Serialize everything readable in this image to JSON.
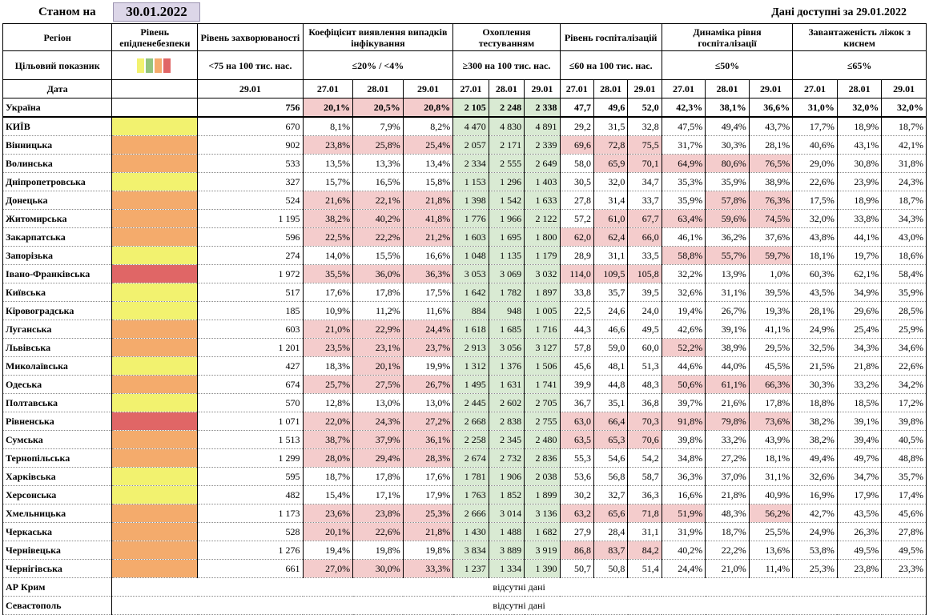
{
  "header": {
    "asof_label": "Станом на",
    "asof_date": "30.01.2022",
    "available": "Дані доступні за  29.01.2022"
  },
  "columns": {
    "region": "Регіон",
    "level": "Рівень епідпенебезпеки",
    "incidence": "Рівень захворюваності",
    "detection": "Коефіцієнт виявлення випадків інфікування",
    "testing": "Охоплення тестуванням",
    "hosp": "Рівень госпіталізацій",
    "dynamics": "Динаміка рівня госпіталізації",
    "oxygen": "Завантаженість ліжок з киснем"
  },
  "targets": {
    "label": "Цільовий показник",
    "incidence": "<75 на 100 тис. нас.",
    "detection": "≤20% / <4%",
    "testing": "≥300 на 100 тис. нас.",
    "hosp": "≤60 на 100 тис. нас.",
    "dynamics": "≤50%",
    "oxygen": "≤65%"
  },
  "legend_colors": [
    "#f2f26f",
    "#93c47d",
    "#f4ab6c",
    "#e06666"
  ],
  "dates": {
    "label": "Дата",
    "incidence": "29.01",
    "d1": "27.01",
    "d2": "28.01",
    "d3": "29.01"
  },
  "rows": [
    {
      "region": "Україна",
      "level": "",
      "inc": "756",
      "det": [
        "20,1%",
        "20,5%",
        "20,8%"
      ],
      "test": [
        "2 105",
        "2 248",
        "2 338"
      ],
      "hosp": [
        "47,7",
        "49,6",
        "52,0"
      ],
      "dyn": [
        "42,3%",
        "38,1%",
        "36,6%"
      ],
      "oxy": [
        "31,0%",
        "32,0%",
        "32,0%"
      ]
    },
    {
      "region": "КИЇВ",
      "level": "Y",
      "inc": "670",
      "det": [
        "8,1%",
        "7,9%",
        "8,2%"
      ],
      "test": [
        "4 470",
        "4 830",
        "4 891"
      ],
      "hosp": [
        "29,2",
        "31,5",
        "32,8"
      ],
      "dyn": [
        "47,5%",
        "49,4%",
        "43,7%"
      ],
      "oxy": [
        "17,7%",
        "18,9%",
        "18,7%"
      ]
    },
    {
      "region": "Вінницька",
      "level": "O",
      "inc": "902",
      "det": [
        "23,8%",
        "25,8%",
        "25,4%"
      ],
      "test": [
        "2 057",
        "2 171",
        "2 339"
      ],
      "hosp": [
        "69,6",
        "72,8",
        "75,5"
      ],
      "dyn": [
        "31,7%",
        "30,3%",
        "28,1%"
      ],
      "oxy": [
        "40,6%",
        "43,1%",
        "42,1%"
      ]
    },
    {
      "region": "Волинська",
      "level": "O",
      "inc": "533",
      "det": [
        "13,5%",
        "13,3%",
        "13,4%"
      ],
      "test": [
        "2 334",
        "2 555",
        "2 649"
      ],
      "hosp": [
        "58,0",
        "65,9",
        "70,1"
      ],
      "dyn": [
        "64,9%",
        "80,6%",
        "76,5%"
      ],
      "oxy": [
        "29,0%",
        "30,8%",
        "31,8%"
      ]
    },
    {
      "region": "Дніпропетровська",
      "level": "Y",
      "inc": "327",
      "det": [
        "15,7%",
        "16,5%",
        "15,8%"
      ],
      "test": [
        "1 153",
        "1 296",
        "1 403"
      ],
      "hosp": [
        "30,5",
        "32,0",
        "34,7"
      ],
      "dyn": [
        "35,3%",
        "35,9%",
        "38,9%"
      ],
      "oxy": [
        "22,6%",
        "23,9%",
        "24,3%"
      ]
    },
    {
      "region": "Донецька",
      "level": "O",
      "inc": "524",
      "det": [
        "21,6%",
        "22,1%",
        "21,8%"
      ],
      "test": [
        "1 398",
        "1 542",
        "1 633"
      ],
      "hosp": [
        "27,8",
        "31,4",
        "33,7"
      ],
      "dyn": [
        "35,9%",
        "57,8%",
        "76,3%"
      ],
      "oxy": [
        "17,5%",
        "18,9%",
        "18,7%"
      ]
    },
    {
      "region": "Житомирська",
      "level": "O",
      "inc": "1 195",
      "det": [
        "38,2%",
        "40,2%",
        "41,8%"
      ],
      "test": [
        "1 776",
        "1 966",
        "2 122"
      ],
      "hosp": [
        "57,2",
        "61,0",
        "67,7"
      ],
      "dyn": [
        "63,4%",
        "59,6%",
        "74,5%"
      ],
      "oxy": [
        "32,0%",
        "33,8%",
        "34,3%"
      ]
    },
    {
      "region": "Закарпатська",
      "level": "O",
      "inc": "596",
      "det": [
        "22,5%",
        "22,2%",
        "21,2%"
      ],
      "test": [
        "1 603",
        "1 695",
        "1 800"
      ],
      "hosp": [
        "62,0",
        "62,4",
        "66,0"
      ],
      "dyn": [
        "46,1%",
        "36,2%",
        "37,6%"
      ],
      "oxy": [
        "43,8%",
        "44,1%",
        "43,0%"
      ]
    },
    {
      "region": "Запорізька",
      "level": "Y",
      "inc": "274",
      "det": [
        "14,0%",
        "15,5%",
        "16,6%"
      ],
      "test": [
        "1 048",
        "1 135",
        "1 179"
      ],
      "hosp": [
        "28,9",
        "31,1",
        "33,5"
      ],
      "dyn": [
        "58,8%",
        "55,7%",
        "59,7%"
      ],
      "oxy": [
        "18,1%",
        "19,7%",
        "18,6%"
      ]
    },
    {
      "region": "Івано-Франківська",
      "level": "R",
      "inc": "1 972",
      "det": [
        "35,5%",
        "36,0%",
        "36,3%"
      ],
      "test": [
        "3 053",
        "3 069",
        "3 032"
      ],
      "hosp": [
        "114,0",
        "109,5",
        "105,8"
      ],
      "dyn": [
        "32,2%",
        "13,9%",
        "1,0%"
      ],
      "oxy": [
        "60,3%",
        "62,1%",
        "58,4%"
      ]
    },
    {
      "region": "Київська",
      "level": "Y",
      "inc": "517",
      "det": [
        "17,6%",
        "17,8%",
        "17,5%"
      ],
      "test": [
        "1 642",
        "1 782",
        "1 897"
      ],
      "hosp": [
        "33,8",
        "35,7",
        "39,5"
      ],
      "dyn": [
        "32,6%",
        "31,1%",
        "39,5%"
      ],
      "oxy": [
        "43,5%",
        "34,9%",
        "35,9%"
      ]
    },
    {
      "region": "Кіровоградська",
      "level": "Y",
      "inc": "185",
      "det": [
        "10,9%",
        "11,2%",
        "11,6%"
      ],
      "test": [
        "884",
        "948",
        "1 005"
      ],
      "hosp": [
        "22,5",
        "24,6",
        "24,0"
      ],
      "dyn": [
        "19,4%",
        "26,7%",
        "19,3%"
      ],
      "oxy": [
        "28,1%",
        "29,6%",
        "28,5%"
      ]
    },
    {
      "region": "Луганська",
      "level": "O",
      "inc": "603",
      "det": [
        "21,0%",
        "22,9%",
        "24,4%"
      ],
      "test": [
        "1 618",
        "1 685",
        "1 716"
      ],
      "hosp": [
        "44,3",
        "46,6",
        "49,5"
      ],
      "dyn": [
        "42,6%",
        "39,1%",
        "41,1%"
      ],
      "oxy": [
        "24,9%",
        "25,4%",
        "25,9%"
      ]
    },
    {
      "region": "Львівська",
      "level": "O",
      "inc": "1 201",
      "det": [
        "23,5%",
        "23,1%",
        "23,7%"
      ],
      "test": [
        "2 913",
        "3 056",
        "3 127"
      ],
      "hosp": [
        "57,8",
        "59,0",
        "60,0"
      ],
      "dyn": [
        "52,2%",
        "38,9%",
        "29,5%"
      ],
      "oxy": [
        "32,5%",
        "34,3%",
        "34,6%"
      ]
    },
    {
      "region": "Миколаївська",
      "level": "Y",
      "inc": "427",
      "det": [
        "18,3%",
        "20,1%",
        "19,9%"
      ],
      "test": [
        "1 312",
        "1 376",
        "1 506"
      ],
      "hosp": [
        "45,6",
        "48,1",
        "51,3"
      ],
      "dyn": [
        "44,6%",
        "44,0%",
        "45,5%"
      ],
      "oxy": [
        "21,5%",
        "21,8%",
        "22,6%"
      ]
    },
    {
      "region": "Одеська",
      "level": "O",
      "inc": "674",
      "det": [
        "25,7%",
        "27,5%",
        "26,7%"
      ],
      "test": [
        "1 495",
        "1 631",
        "1 741"
      ],
      "hosp": [
        "39,9",
        "44,8",
        "48,3"
      ],
      "dyn": [
        "50,6%",
        "61,1%",
        "66,3%"
      ],
      "oxy": [
        "30,3%",
        "33,2%",
        "34,2%"
      ]
    },
    {
      "region": "Полтавська",
      "level": "Y",
      "inc": "570",
      "det": [
        "12,8%",
        "13,0%",
        "13,0%"
      ],
      "test": [
        "2 445",
        "2 602",
        "2 705"
      ],
      "hosp": [
        "36,7",
        "35,1",
        "36,8"
      ],
      "dyn": [
        "39,7%",
        "21,6%",
        "17,8%"
      ],
      "oxy": [
        "18,8%",
        "18,5%",
        "17,2%"
      ]
    },
    {
      "region": "Рівненська",
      "level": "R",
      "inc": "1 071",
      "det": [
        "22,0%",
        "24,3%",
        "27,2%"
      ],
      "test": [
        "2 668",
        "2 838",
        "2 755"
      ],
      "hosp": [
        "63,0",
        "66,4",
        "70,3"
      ],
      "dyn": [
        "91,8%",
        "79,8%",
        "73,6%"
      ],
      "oxy": [
        "38,2%",
        "39,1%",
        "39,8%"
      ]
    },
    {
      "region": "Сумська",
      "level": "O",
      "inc": "1 513",
      "det": [
        "38,7%",
        "37,9%",
        "36,1%"
      ],
      "test": [
        "2 258",
        "2 345",
        "2 480"
      ],
      "hosp": [
        "63,5",
        "65,3",
        "70,6"
      ],
      "dyn": [
        "39,8%",
        "33,2%",
        "43,9%"
      ],
      "oxy": [
        "38,2%",
        "39,4%",
        "40,5%"
      ]
    },
    {
      "region": "Тернопільська",
      "level": "O",
      "inc": "1 299",
      "det": [
        "28,0%",
        "29,4%",
        "28,3%"
      ],
      "test": [
        "2 674",
        "2 732",
        "2 836"
      ],
      "hosp": [
        "55,3",
        "54,6",
        "54,2"
      ],
      "dyn": [
        "34,8%",
        "27,2%",
        "18,1%"
      ],
      "oxy": [
        "49,4%",
        "49,7%",
        "48,8%"
      ]
    },
    {
      "region": "Харківська",
      "level": "Y",
      "inc": "595",
      "det": [
        "18,7%",
        "17,8%",
        "17,6%"
      ],
      "test": [
        "1 781",
        "1 906",
        "2 038"
      ],
      "hosp": [
        "53,6",
        "56,8",
        "58,7"
      ],
      "dyn": [
        "36,3%",
        "37,0%",
        "31,1%"
      ],
      "oxy": [
        "32,6%",
        "34,7%",
        "35,7%"
      ]
    },
    {
      "region": "Херсонська",
      "level": "Y",
      "inc": "482",
      "det": [
        "15,4%",
        "17,1%",
        "17,9%"
      ],
      "test": [
        "1 763",
        "1 852",
        "1 899"
      ],
      "hosp": [
        "30,2",
        "32,7",
        "36,3"
      ],
      "dyn": [
        "16,6%",
        "21,8%",
        "40,9%"
      ],
      "oxy": [
        "16,9%",
        "17,9%",
        "17,4%"
      ]
    },
    {
      "region": "Хмельницька",
      "level": "O",
      "inc": "1 173",
      "det": [
        "23,6%",
        "23,8%",
        "25,3%"
      ],
      "test": [
        "2 666",
        "3 014",
        "3 136"
      ],
      "hosp": [
        "63,2",
        "65,6",
        "71,8"
      ],
      "dyn": [
        "51,9%",
        "48,3%",
        "56,2%"
      ],
      "oxy": [
        "42,7%",
        "43,5%",
        "45,6%"
      ]
    },
    {
      "region": "Черкаська",
      "level": "O",
      "inc": "528",
      "det": [
        "20,1%",
        "22,6%",
        "21,8%"
      ],
      "test": [
        "1 430",
        "1 488",
        "1 682"
      ],
      "hosp": [
        "27,9",
        "28,4",
        "31,1"
      ],
      "dyn": [
        "31,9%",
        "18,7%",
        "25,5%"
      ],
      "oxy": [
        "24,9%",
        "26,3%",
        "27,8%"
      ]
    },
    {
      "region": "Чернівецька",
      "level": "O",
      "inc": "1 276",
      "det": [
        "19,4%",
        "19,8%",
        "19,8%"
      ],
      "test": [
        "3 834",
        "3 889",
        "3 919"
      ],
      "hosp": [
        "86,8",
        "83,7",
        "84,2"
      ],
      "dyn": [
        "40,2%",
        "22,2%",
        "13,6%"
      ],
      "oxy": [
        "53,8%",
        "49,5%",
        "49,5%"
      ]
    },
    {
      "region": "Чернігівська",
      "level": "O",
      "inc": "661",
      "det": [
        "27,0%",
        "30,0%",
        "33,3%"
      ],
      "test": [
        "1 237",
        "1 334",
        "1 390"
      ],
      "hosp": [
        "50,7",
        "50,8",
        "51,4"
      ],
      "dyn": [
        "24,4%",
        "21,0%",
        "11,4%"
      ],
      "oxy": [
        "25,3%",
        "23,8%",
        "23,3%"
      ]
    }
  ],
  "nodata_rows": [
    {
      "region": "АР Крим",
      "text": "відсутні дані"
    },
    {
      "region": "Севастополь",
      "text": "відсутні дані"
    }
  ]
}
